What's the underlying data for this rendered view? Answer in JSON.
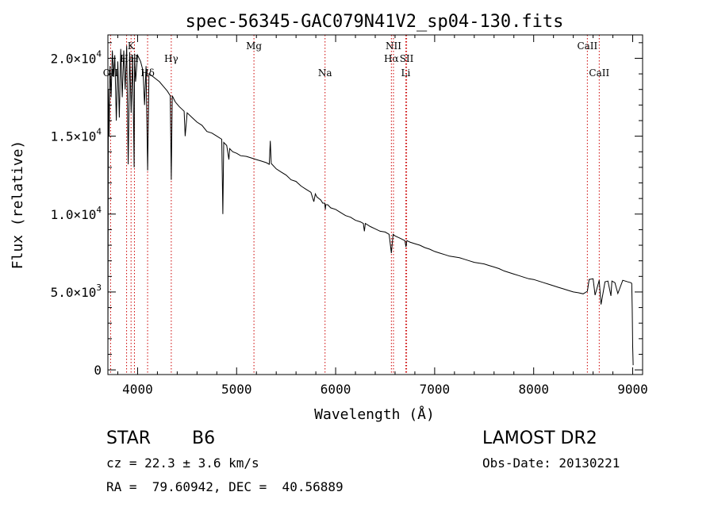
{
  "chart_data": {
    "type": "line",
    "title": "spec-56345-GAC079N41V2_sp04-130.fits",
    "xlabel": "Wavelength (Å)",
    "ylabel": "Flux (relative)",
    "xlim": [
      3700,
      9100
    ],
    "ylim": [
      -300,
      21500
    ],
    "x_ticks": [
      {
        "v": 4000,
        "label": "4000"
      },
      {
        "v": 5000,
        "label": "5000"
      },
      {
        "v": 6000,
        "label": "6000"
      },
      {
        "v": 7000,
        "label": "7000"
      },
      {
        "v": 8000,
        "label": "8000"
      },
      {
        "v": 9000,
        "label": "9000"
      }
    ],
    "y_ticks": [
      {
        "v": 0,
        "mant": "0",
        "exp": ""
      },
      {
        "v": 5000,
        "mant": "5.0×10",
        "exp": "3"
      },
      {
        "v": 10000,
        "mant": "1.0×10",
        "exp": "4"
      },
      {
        "v": 15000,
        "mant": "1.5×10",
        "exp": "4"
      },
      {
        "v": 20000,
        "mant": "2.0×10",
        "exp": "4"
      }
    ],
    "grid": false,
    "series": [
      {
        "color": "#000000",
        "x": [
          3700,
          3705,
          3712,
          3722,
          3733,
          3745,
          3758,
          3770,
          3785,
          3800,
          3815,
          3830,
          3845,
          3860,
          3875,
          3890,
          3905,
          3920,
          3935,
          3950,
          3965,
          3970,
          3980,
          4000,
          4030,
          4055,
          4070,
          4085,
          4101,
          4115,
          4140,
          4180,
          4220,
          4260,
          4300,
          4330,
          4340,
          4350,
          4380,
          4420,
          4470,
          4480,
          4500,
          4550,
          4600,
          4650,
          4700,
          4750,
          4800,
          4850,
          4861,
          4870,
          4900,
          4922,
          4930,
          4960,
          5000,
          5040,
          5100,
          5150,
          5200,
          5250,
          5300,
          5330,
          5340,
          5350,
          5400,
          5450,
          5500,
          5550,
          5600,
          5650,
          5700,
          5750,
          5780,
          5795,
          5810,
          5850,
          5870,
          5890,
          5896,
          5900,
          5920,
          5950,
          6000,
          6050,
          6100,
          6150,
          6200,
          6250,
          6280,
          6290,
          6300,
          6350,
          6400,
          6450,
          6500,
          6540,
          6563,
          6580,
          6600,
          6650,
          6700,
          6710,
          6720,
          6750,
          6800,
          6850,
          6900,
          6950,
          7000,
          7050,
          7100,
          7150,
          7200,
          7250,
          7300,
          7350,
          7400,
          7450,
          7500,
          7550,
          7600,
          7650,
          7700,
          7750,
          7800,
          7850,
          7900,
          7950,
          8000,
          8050,
          8100,
          8150,
          8200,
          8250,
          8300,
          8350,
          8400,
          8450,
          8500,
          8542,
          8560,
          8600,
          8620,
          8662,
          8680,
          8720,
          8750,
          8780,
          8790,
          8820,
          8850,
          8900,
          8950,
          8980,
          8990,
          8995,
          9000,
          9005
        ],
        "y": [
          300,
          18000,
          15000,
          19500,
          17500,
          20500,
          18800,
          20200,
          16000,
          19800,
          16200,
          20600,
          17500,
          20500,
          18000,
          20800,
          13200,
          20400,
          16500,
          20100,
          13000,
          20300,
          18500,
          20200,
          19800,
          19200,
          17000,
          19500,
          12800,
          19000,
          18900,
          18700,
          18500,
          18200,
          17900,
          17600,
          12200,
          17600,
          17200,
          16900,
          16600,
          15000,
          16500,
          16200,
          15900,
          15700,
          15300,
          15200,
          15000,
          14800,
          10000,
          14600,
          14400,
          13500,
          14200,
          14000,
          13900,
          13750,
          13700,
          13600,
          13500,
          13400,
          13300,
          13200,
          14700,
          13250,
          12900,
          12700,
          12500,
          12200,
          12100,
          11800,
          11600,
          11400,
          10800,
          11300,
          11100,
          10900,
          10700,
          10700,
          10300,
          10600,
          10600,
          10400,
          10300,
          10100,
          9900,
          9800,
          9600,
          9500,
          9400,
          8900,
          9400,
          9200,
          9050,
          8900,
          8850,
          8700,
          7500,
          8700,
          8600,
          8450,
          8300,
          7900,
          8300,
          8200,
          8100,
          8000,
          7850,
          7750,
          7600,
          7500,
          7400,
          7300,
          7250,
          7200,
          7100,
          7000,
          6900,
          6850,
          6800,
          6700,
          6600,
          6500,
          6350,
          6250,
          6150,
          6050,
          5950,
          5850,
          5800,
          5700,
          5600,
          5500,
          5400,
          5300,
          5200,
          5100,
          5000,
          4950,
          4880,
          5050,
          5800,
          5850,
          4800,
          5750,
          4200,
          5650,
          5700,
          4750,
          5700,
          5600,
          4900,
          5750,
          5650,
          5600,
          5550,
          4000,
          1500,
          300
        ]
      }
    ],
    "line_markers": [
      {
        "x": 3727,
        "label": "OII",
        "row": 2
      },
      {
        "x": 3889,
        "label": "Hε",
        "row": 1
      },
      {
        "x": 3934,
        "label": "K",
        "row": 0
      },
      {
        "x": 3968,
        "label": "H",
        "row": 1
      },
      {
        "x": 4101,
        "label": "Hδ",
        "row": 2
      },
      {
        "x": 4340,
        "label": "Hγ",
        "row": 1
      },
      {
        "x": 5175,
        "label": "Mg",
        "row": 0
      },
      {
        "x": 5893,
        "label": "Na",
        "row": 2
      },
      {
        "x": 6563,
        "label": "Hα",
        "row": 1
      },
      {
        "x": 6584,
        "label": "NII",
        "row": 0
      },
      {
        "x": 6717,
        "label": "SII",
        "row": 1
      },
      {
        "x": 6708,
        "label": "Li",
        "row": 2
      },
      {
        "x": 8542,
        "label": "CaII",
        "row": 0
      },
      {
        "x": 8662,
        "label": "CaII",
        "row": 2
      }
    ]
  },
  "info": {
    "class_label": "STAR",
    "subclass": "B6",
    "survey": "LAMOST DR2",
    "cz": "cz = 22.3 ± 3.6 km/s",
    "obs_date": "Obs-Date: 20130221",
    "radec": "RA =  79.60942, DEC =  40.56889"
  }
}
